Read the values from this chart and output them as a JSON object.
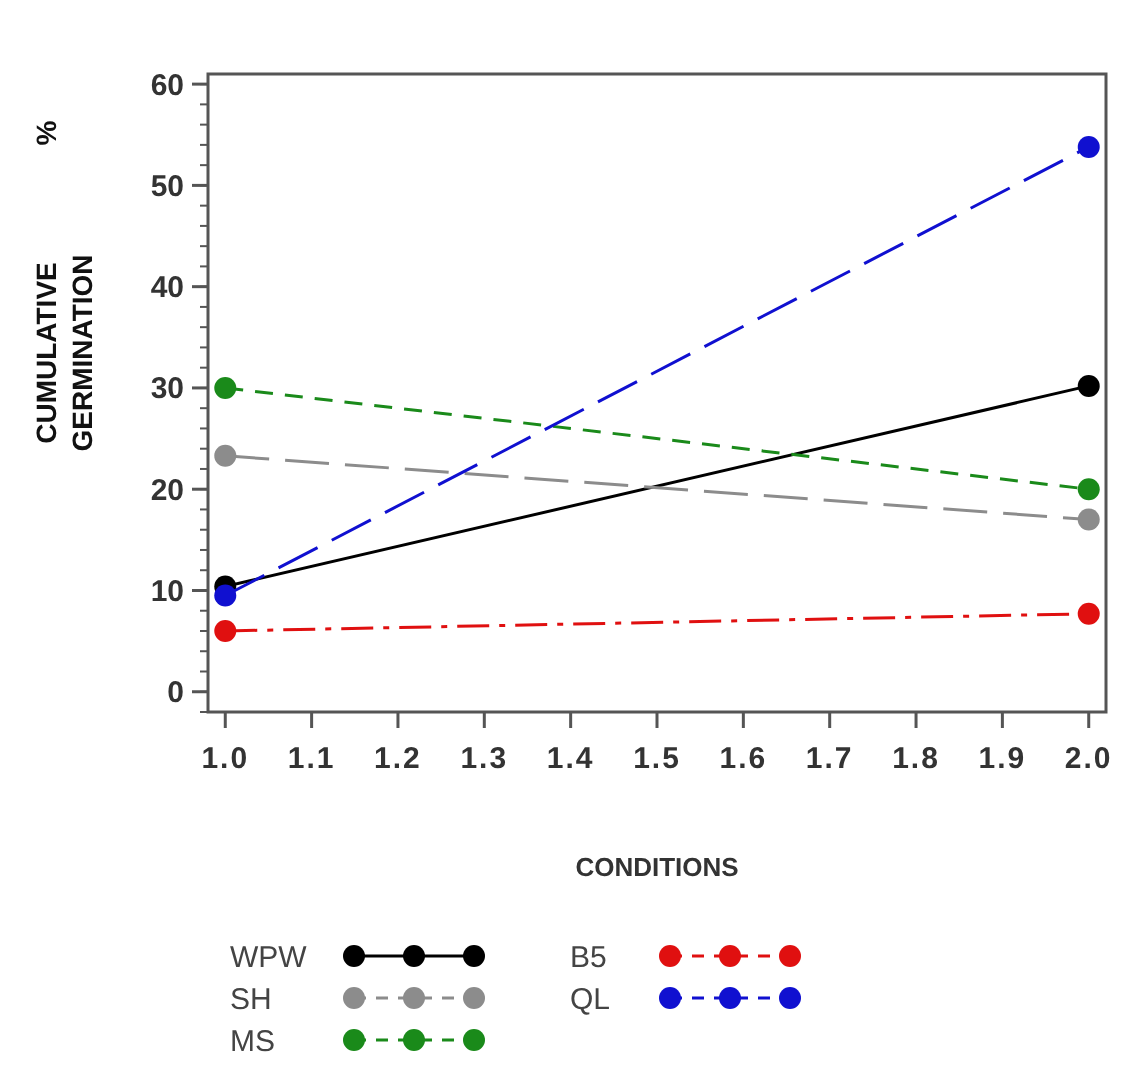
{
  "chart_data": {
    "type": "line",
    "xlabel": "CONDITIONS",
    "ylabel": "CUMULATIVE GERMINATION %",
    "x": [
      1.0,
      2.0
    ],
    "xlim": [
      0.98,
      2.02
    ],
    "xticks": [
      {
        "value": 1.0,
        "label": "1.0"
      },
      1.1,
      1.2,
      1.3,
      1.4,
      1.5,
      1.6,
      1.7,
      1.8,
      1.9,
      {
        "value": 2.0,
        "label": "2.0"
      }
    ],
    "ylim": [
      -2,
      61
    ],
    "yticks": [
      0,
      10,
      20,
      30,
      40,
      50,
      60
    ],
    "marker": "circle",
    "legend": "bottom",
    "grid": false,
    "series": [
      {
        "name": "WPW",
        "color": "#000000",
        "line_style": "solid",
        "values": [
          10.4,
          30.2
        ]
      },
      {
        "name": "SH",
        "color": "#8c8c8c",
        "line_style": "longdash",
        "values": [
          23.3,
          17
        ]
      },
      {
        "name": "MS",
        "color": "#1a8a1a",
        "line_style": "dashed",
        "values": [
          30,
          20
        ]
      },
      {
        "name": "B5",
        "color": "#e01010",
        "line_style": "dashdot",
        "values": [
          6,
          7.7
        ]
      },
      {
        "name": "QL",
        "color": "#1010d0",
        "line_style": "longdash",
        "values": [
          9.5,
          53.8
        ]
      }
    ]
  }
}
